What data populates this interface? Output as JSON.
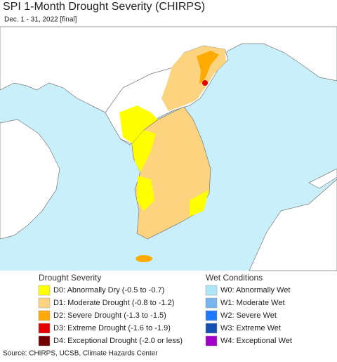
{
  "header": {
    "title": "SPI 1-Month Drought Severity (CHIRPS)",
    "subtitle": "Dec. 1 - 31, 2022 [final]"
  },
  "legend": {
    "drought": {
      "title": "Drought Severity",
      "items": [
        {
          "label": "D0: Abnormally Dry (-0.5 to -0.7)",
          "color": "#ffff00"
        },
        {
          "label": "D1: Moderate Drought (-0.8 to -1.2)",
          "color": "#fcd37f"
        },
        {
          "label": "D2: Severe Drought (-1.3 to -1.5)",
          "color": "#ffaa00"
        },
        {
          "label": "D3: Extreme Drought (-1.6 to -1.9)",
          "color": "#e60000"
        },
        {
          "label": "D4: Exceptional Drought (-2.0 or less)",
          "color": "#730000"
        }
      ]
    },
    "wet": {
      "title": "Wet Conditions",
      "items": [
        {
          "label": "W0: Abnormally Wet",
          "color": "#aee5f7"
        },
        {
          "label": "W1: Moderate Wet",
          "color": "#78b4f0"
        },
        {
          "label": "W2: Severe Wet",
          "color": "#1e78ff"
        },
        {
          "label": "W3: Extreme Wet",
          "color": "#1450b4"
        },
        {
          "label": "W4: Exceptional Wet",
          "color": "#a000c8"
        }
      ]
    }
  },
  "footer": {
    "source": "Source: CHIRPS, UCSB, Climate Hazards Center"
  }
}
